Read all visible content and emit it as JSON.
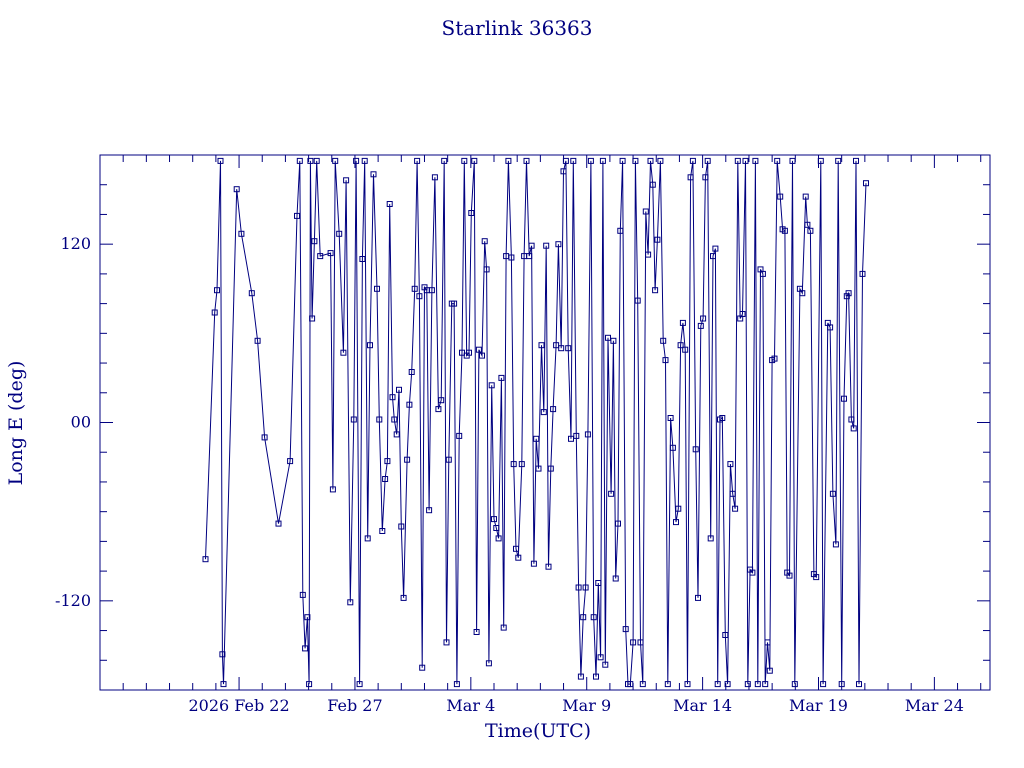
{
  "colors": {
    "ink": "#000080",
    "background": "#ffffff"
  },
  "chart_data": {
    "type": "line",
    "title": "Starlink 36363",
    "xlabel": "Time(UTC)",
    "ylabel": "Long E (deg)",
    "x_unit": "days from plot left edge (left edge = 2026 Feb 16)",
    "xlim": [
      0,
      38.4
    ],
    "ylim": [
      -180,
      180
    ],
    "grid": false,
    "legend": null,
    "marker": "open-square",
    "line_color": "#000080",
    "x_major_ticks": [
      {
        "day": 6,
        "label": "2026 Feb 22"
      },
      {
        "day": 11,
        "label": "Feb 27"
      },
      {
        "day": 16,
        "label": "Mar 4"
      },
      {
        "day": 21,
        "label": "Mar 9"
      },
      {
        "day": 26,
        "label": "Mar 14"
      },
      {
        "day": 31,
        "label": "Mar 19"
      },
      {
        "day": 36,
        "label": "Mar 24"
      }
    ],
    "x_minor_step": 1,
    "y_major_ticks": [
      {
        "value": 120,
        "label": "120"
      },
      {
        "value": 0,
        "label": "00"
      },
      {
        "value": -120,
        "label": "-120"
      }
    ],
    "y_minor_step": 20,
    "points": [
      [
        4.55,
        -92
      ],
      [
        4.95,
        74
      ],
      [
        5.05,
        89
      ],
      [
        5.2,
        176
      ],
      [
        5.28,
        -156
      ],
      [
        5.33,
        -176
      ],
      [
        5.9,
        157
      ],
      [
        6.1,
        127
      ],
      [
        6.55,
        87
      ],
      [
        6.8,
        55
      ],
      [
        7.1,
        -10
      ],
      [
        7.7,
        -68
      ],
      [
        8.2,
        -26
      ],
      [
        8.5,
        139
      ],
      [
        8.62,
        176
      ],
      [
        8.75,
        -116
      ],
      [
        8.85,
        -152
      ],
      [
        8.95,
        -131
      ],
      [
        9.02,
        -176
      ],
      [
        9.08,
        176
      ],
      [
        9.15,
        70
      ],
      [
        9.25,
        122
      ],
      [
        9.35,
        176
      ],
      [
        9.5,
        112
      ],
      [
        9.95,
        114
      ],
      [
        10.05,
        -45
      ],
      [
        10.15,
        176
      ],
      [
        10.32,
        127
      ],
      [
        10.5,
        47
      ],
      [
        10.62,
        163
      ],
      [
        10.8,
        -121
      ],
      [
        10.95,
        2
      ],
      [
        11.05,
        176
      ],
      [
        11.2,
        -176
      ],
      [
        11.32,
        110
      ],
      [
        11.42,
        176
      ],
      [
        11.55,
        -78
      ],
      [
        11.65,
        52
      ],
      [
        11.8,
        167
      ],
      [
        11.95,
        90
      ],
      [
        12.05,
        2
      ],
      [
        12.18,
        -73
      ],
      [
        12.3,
        -38
      ],
      [
        12.4,
        -26
      ],
      [
        12.5,
        147
      ],
      [
        12.62,
        17
      ],
      [
        12.7,
        2
      ],
      [
        12.8,
        -8
      ],
      [
        12.9,
        22
      ],
      [
        13.0,
        -70
      ],
      [
        13.1,
        -118
      ],
      [
        13.25,
        -25
      ],
      [
        13.35,
        12
      ],
      [
        13.45,
        34
      ],
      [
        13.58,
        90
      ],
      [
        13.68,
        176
      ],
      [
        13.78,
        85
      ],
      [
        13.9,
        -165
      ],
      [
        14.0,
        91
      ],
      [
        14.1,
        89
      ],
      [
        14.2,
        -59
      ],
      [
        14.32,
        89
      ],
      [
        14.45,
        165
      ],
      [
        14.6,
        9
      ],
      [
        14.72,
        15
      ],
      [
        14.85,
        176
      ],
      [
        14.95,
        -148
      ],
      [
        15.05,
        -25
      ],
      [
        15.18,
        80
      ],
      [
        15.28,
        80
      ],
      [
        15.4,
        -176
      ],
      [
        15.5,
        -9
      ],
      [
        15.62,
        47
      ],
      [
        15.72,
        176
      ],
      [
        15.82,
        45
      ],
      [
        15.92,
        47
      ],
      [
        16.02,
        141
      ],
      [
        16.15,
        176
      ],
      [
        16.25,
        -141
      ],
      [
        16.35,
        49
      ],
      [
        16.48,
        45
      ],
      [
        16.6,
        122
      ],
      [
        16.68,
        103
      ],
      [
        16.78,
        -162
      ],
      [
        16.9,
        25
      ],
      [
        17.0,
        -65
      ],
      [
        17.1,
        -71
      ],
      [
        17.2,
        -78
      ],
      [
        17.32,
        30
      ],
      [
        17.42,
        -138
      ],
      [
        17.52,
        112
      ],
      [
        17.62,
        176
      ],
      [
        17.75,
        111
      ],
      [
        17.85,
        -28
      ],
      [
        17.95,
        -85
      ],
      [
        18.05,
        -91
      ],
      [
        18.2,
        -28
      ],
      [
        18.3,
        112
      ],
      [
        18.4,
        176
      ],
      [
        18.52,
        112
      ],
      [
        18.62,
        119
      ],
      [
        18.72,
        -95
      ],
      [
        18.82,
        -11
      ],
      [
        18.92,
        -31
      ],
      [
        19.05,
        52
      ],
      [
        19.15,
        7
      ],
      [
        19.25,
        119
      ],
      [
        19.35,
        -97
      ],
      [
        19.45,
        -31
      ],
      [
        19.55,
        9
      ],
      [
        19.68,
        52
      ],
      [
        19.78,
        120
      ],
      [
        19.9,
        50
      ],
      [
        20.0,
        169
      ],
      [
        20.1,
        176
      ],
      [
        20.2,
        50
      ],
      [
        20.32,
        -11
      ],
      [
        20.42,
        176
      ],
      [
        20.55,
        -9
      ],
      [
        20.65,
        -111
      ],
      [
        20.75,
        -171
      ],
      [
        20.85,
        -131
      ],
      [
        20.95,
        -111
      ],
      [
        21.05,
        -8
      ],
      [
        21.18,
        176
      ],
      [
        21.3,
        -131
      ],
      [
        21.4,
        -171
      ],
      [
        21.5,
        -108
      ],
      [
        21.6,
        -158
      ],
      [
        21.7,
        176
      ],
      [
        21.8,
        -163
      ],
      [
        21.92,
        57
      ],
      [
        22.05,
        -48
      ],
      [
        22.15,
        55
      ],
      [
        22.25,
        -105
      ],
      [
        22.35,
        -68
      ],
      [
        22.45,
        129
      ],
      [
        22.55,
        176
      ],
      [
        22.68,
        -139
      ],
      [
        22.78,
        -176
      ],
      [
        22.88,
        -176
      ],
      [
        23.0,
        -148
      ],
      [
        23.1,
        176
      ],
      [
        23.2,
        82
      ],
      [
        23.32,
        -148
      ],
      [
        23.42,
        -176
      ],
      [
        23.55,
        142
      ],
      [
        23.65,
        113
      ],
      [
        23.75,
        176
      ],
      [
        23.85,
        160
      ],
      [
        23.95,
        89
      ],
      [
        24.05,
        123
      ],
      [
        24.18,
        176
      ],
      [
        24.3,
        55
      ],
      [
        24.4,
        42
      ],
      [
        24.5,
        -176
      ],
      [
        24.62,
        3
      ],
      [
        24.72,
        -17
      ],
      [
        24.85,
        -67
      ],
      [
        24.95,
        -58
      ],
      [
        25.05,
        52
      ],
      [
        25.15,
        67
      ],
      [
        25.25,
        49
      ],
      [
        25.35,
        -176
      ],
      [
        25.48,
        165
      ],
      [
        25.58,
        176
      ],
      [
        25.7,
        -18
      ],
      [
        25.8,
        -118
      ],
      [
        25.92,
        65
      ],
      [
        26.02,
        70
      ],
      [
        26.12,
        165
      ],
      [
        26.22,
        176
      ],
      [
        26.35,
        -78
      ],
      [
        26.45,
        112
      ],
      [
        26.55,
        117
      ],
      [
        26.65,
        -176
      ],
      [
        26.75,
        2
      ],
      [
        26.85,
        3
      ],
      [
        26.98,
        -143
      ],
      [
        27.08,
        -176
      ],
      [
        27.2,
        -28
      ],
      [
        27.3,
        -48
      ],
      [
        27.4,
        -58
      ],
      [
        27.52,
        176
      ],
      [
        27.62,
        70
      ],
      [
        27.72,
        73
      ],
      [
        27.85,
        176
      ],
      [
        27.95,
        -176
      ],
      [
        28.05,
        -99
      ],
      [
        28.15,
        -101
      ],
      [
        28.28,
        176
      ],
      [
        28.38,
        -176
      ],
      [
        28.5,
        103
      ],
      [
        28.6,
        100
      ],
      [
        28.7,
        -176
      ],
      [
        28.8,
        -148
      ],
      [
        28.9,
        -167
      ],
      [
        29.0,
        42
      ],
      [
        29.1,
        43
      ],
      [
        29.22,
        176
      ],
      [
        29.35,
        152
      ],
      [
        29.45,
        130
      ],
      [
        29.55,
        129
      ],
      [
        29.65,
        -101
      ],
      [
        29.75,
        -103
      ],
      [
        29.88,
        176
      ],
      [
        29.98,
        -176
      ],
      [
        30.2,
        90
      ],
      [
        30.3,
        87
      ],
      [
        30.45,
        152
      ],
      [
        30.52,
        133
      ],
      [
        30.65,
        129
      ],
      [
        30.8,
        -102
      ],
      [
        30.9,
        -104
      ],
      [
        31.1,
        176
      ],
      [
        31.2,
        -176
      ],
      [
        31.4,
        67
      ],
      [
        31.5,
        64
      ],
      [
        31.62,
        -48
      ],
      [
        31.75,
        -82
      ],
      [
        31.85,
        176
      ],
      [
        32.0,
        -176
      ],
      [
        32.1,
        16
      ],
      [
        32.22,
        85
      ],
      [
        32.3,
        87
      ],
      [
        32.42,
        2
      ],
      [
        32.52,
        -4
      ],
      [
        32.62,
        176
      ],
      [
        32.75,
        -176
      ],
      [
        32.9,
        100
      ],
      [
        33.05,
        161
      ]
    ]
  }
}
